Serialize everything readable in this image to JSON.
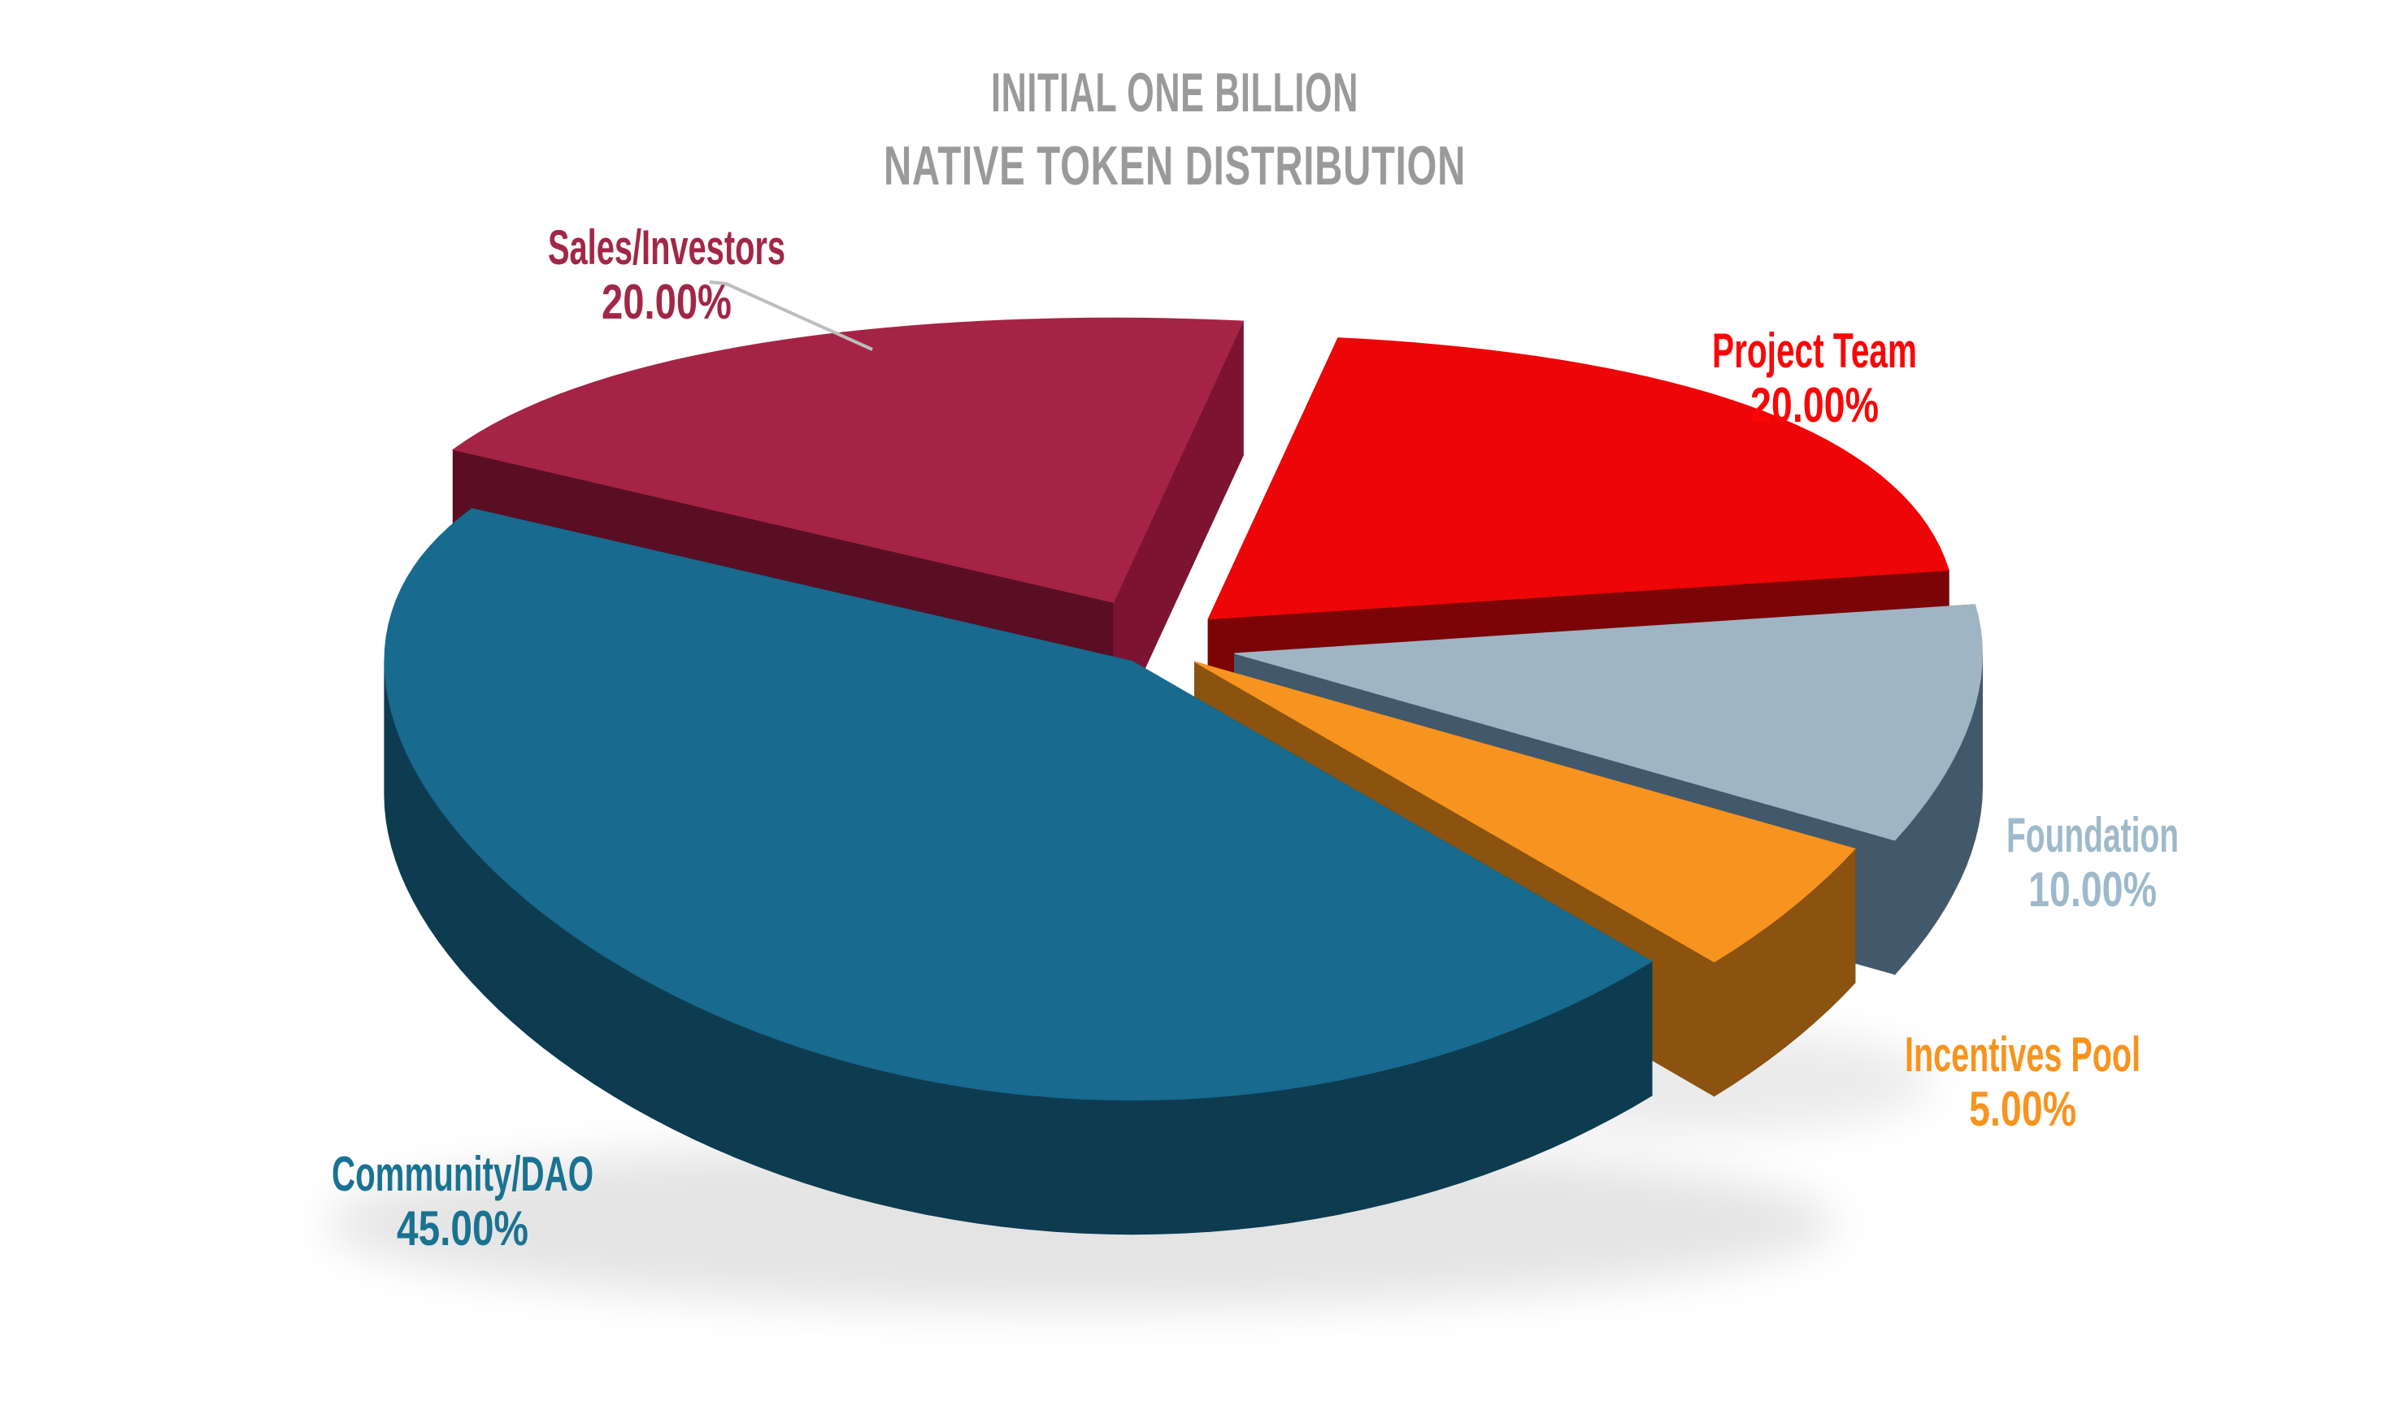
{
  "title": {
    "line1": "INITIAL ONE BILLION",
    "line2": "NATIVE TOKEN DISTRIBUTION",
    "color": "#9A9A9A"
  },
  "chart_data": {
    "type": "pie",
    "style": "3d-exploded-pie",
    "background": "#FFFFFF",
    "legend": "none",
    "labels": "slice name and percent placed around chart, colored to match slice",
    "order_clockwise_from_top": [
      "Project Team",
      "Foundation",
      "Incentives Pool",
      "Community/DAO",
      "Sales/Investors"
    ],
    "slices": [
      {
        "label": "Project Team",
        "value": 20,
        "display": "20.00%",
        "color": "#ED0507",
        "side_color": "#7A0406",
        "label_color": "#FA0606"
      },
      {
        "label": "Foundation",
        "value": 10,
        "display": "10.00%",
        "color": "#9FB5C4",
        "side_color": "#42586B",
        "label_color": "#9EBACA"
      },
      {
        "label": "Incentives Pool",
        "value": 5,
        "display": "5.00%",
        "color": "#F79420",
        "side_color": "#8B530F",
        "label_color": "#F7941E"
      },
      {
        "label": "Community/DAO",
        "value": 45,
        "display": "45.00%",
        "color": "#186A8E",
        "side_color": "#0D3B50",
        "label_color": "#1A7291"
      },
      {
        "label": "Sales/Investors",
        "value": 20,
        "display": "20.00%",
        "color": "#A52445",
        "side_color": "#7C1331",
        "label_color": "#A22746"
      }
    ],
    "leader_line_color": "#BDBDBD",
    "shadow_color": "rgba(0,0,0,0.10)"
  }
}
